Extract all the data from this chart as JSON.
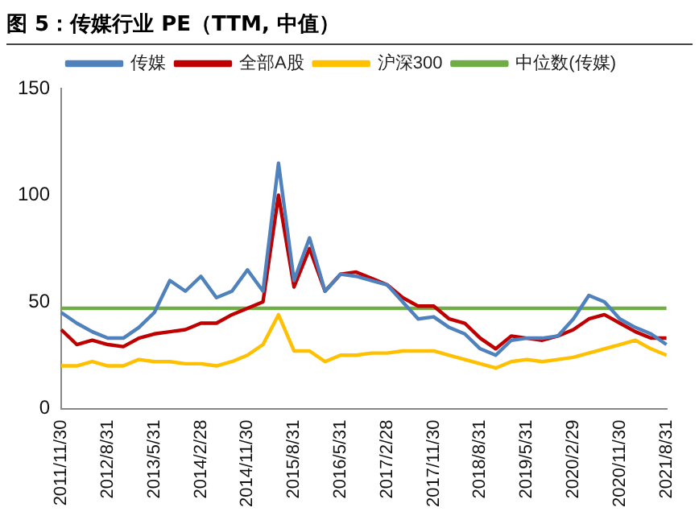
{
  "chart_data": {
    "type": "line",
    "title": "图 5：传媒行业 PE（TTM, 中值）",
    "categories": [
      "2011/11/30",
      null,
      null,
      "2012/8/31",
      null,
      null,
      "2013/5/31",
      null,
      null,
      "2014/2/28",
      null,
      null,
      "2014/11/30",
      null,
      null,
      "2015/8/31",
      null,
      null,
      "2016/5/31",
      null,
      null,
      "2017/2/28",
      null,
      null,
      "2017/11/30",
      null,
      null,
      "2018/8/31",
      null,
      null,
      "2019/5/31",
      null,
      null,
      "2020/2/29",
      null,
      null,
      "2020/11/30",
      null,
      null,
      "2021/8/31"
    ],
    "series": [
      {
        "name": "传媒",
        "color": "#4f81bd",
        "values": [
          45,
          40,
          36,
          33,
          33,
          38,
          45,
          60,
          55,
          62,
          52,
          55,
          65,
          55,
          115,
          60,
          80,
          55,
          63,
          62,
          60,
          58,
          50,
          42,
          43,
          38,
          35,
          28,
          25,
          32,
          33,
          33,
          34,
          42,
          53,
          50,
          42,
          38,
          35,
          30
        ]
      },
      {
        "name": "全部A股",
        "color": "#c00000",
        "values": [
          37,
          30,
          32,
          30,
          29,
          33,
          35,
          36,
          37,
          40,
          40,
          44,
          47,
          50,
          100,
          57,
          75,
          55,
          63,
          64,
          61,
          58,
          52,
          48,
          48,
          42,
          40,
          33,
          28,
          34,
          33,
          32,
          34,
          37,
          42,
          44,
          40,
          36,
          33,
          33
        ]
      },
      {
        "name": "沪深300",
        "color": "#ffc000",
        "values": [
          20,
          20,
          22,
          20,
          20,
          23,
          22,
          22,
          21,
          21,
          20,
          22,
          25,
          30,
          44,
          27,
          27,
          22,
          25,
          25,
          26,
          26,
          27,
          27,
          27,
          25,
          23,
          21,
          19,
          22,
          23,
          22,
          23,
          24,
          26,
          28,
          30,
          32,
          28,
          25
        ]
      },
      {
        "name": "中位数(传媒)",
        "color": "#70ad47",
        "values": [
          47,
          47,
          47,
          47,
          47,
          47,
          47,
          47,
          47,
          47,
          47,
          47,
          47,
          47,
          47,
          47,
          47,
          47,
          47,
          47,
          47,
          47,
          47,
          47,
          47,
          47,
          47,
          47,
          47,
          47,
          47,
          47,
          47,
          47,
          47,
          47,
          47,
          47,
          47,
          47
        ]
      }
    ],
    "ylim": [
      0,
      150
    ],
    "yticks": [
      0,
      50,
      100,
      150
    ],
    "grid": false,
    "legend": "top",
    "marker": "none",
    "line_style": "solid"
  }
}
